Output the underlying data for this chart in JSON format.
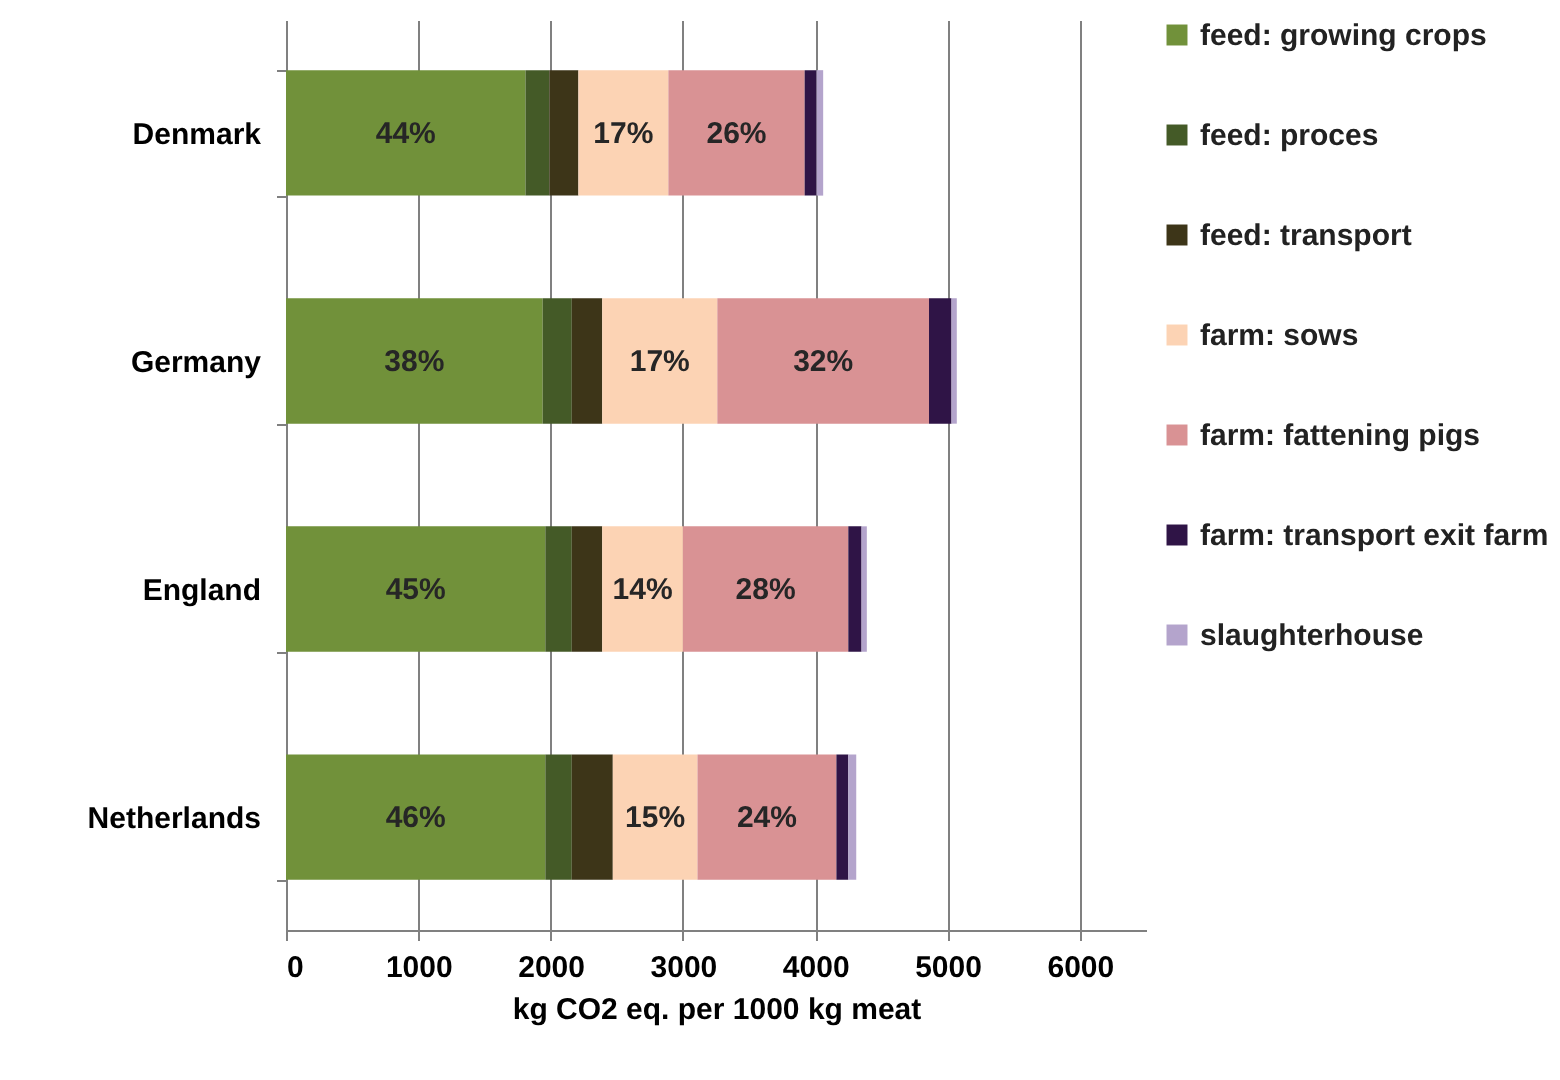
{
  "chart_data": {
    "type": "bar",
    "orientation": "horizontal",
    "stacked": true,
    "xlabel": "kg CO2 eq. per 1000 kg meat",
    "categories": [
      "Denmark",
      "Germany",
      "England",
      "Netherlands"
    ],
    "xlim": [
      0,
      6500
    ],
    "xticks": [
      0,
      1000,
      2000,
      3000,
      4000,
      5000,
      6000
    ],
    "grid": "x",
    "legend": "right",
    "series": [
      {
        "name": "feed: growing crops",
        "color": "#71913a",
        "values": [
          1810,
          1940,
          1960,
          1960
        ]
      },
      {
        "name": "feed: proces",
        "color": "#445a27",
        "values": [
          180,
          220,
          200,
          200
        ]
      },
      {
        "name": "feed: transport",
        "color": "#3d3518",
        "values": [
          220,
          230,
          230,
          310
        ]
      },
      {
        "name": "farm: sows",
        "color": "#fcd3b4",
        "values": [
          680,
          870,
          610,
          640
        ]
      },
      {
        "name": "farm: fattening pigs",
        "color": "#d99294",
        "values": [
          1030,
          1600,
          1250,
          1050
        ]
      },
      {
        "name": "farm: transport exit farm",
        "color": "#2f1446",
        "values": [
          90,
          170,
          100,
          90
        ]
      },
      {
        "name": "slaughterhouse",
        "color": "#b4a4cc",
        "values": [
          50,
          40,
          40,
          60
        ]
      }
    ],
    "annotations": [
      "44%",
      {
        "text": "17%",
        "x": 2890,
        "y": "Denmark"
      },
      {
        "text": "26%",
        "x": 3920,
        "y": "Denmark"
      },
      "38%",
      {
        "text": "17%",
        "x": 3260,
        "y": "Germany"
      },
      {
        "text": "32%",
        "x": 4860,
        "y": "Germany"
      },
      "45%",
      {
        "text": "14%",
        "x": 3000,
        "y": "England"
      },
      {
        "text": "28%",
        "x": 4250,
        "y": "England"
      },
      "46%",
      {
        "text": "15%",
        "x": 3110,
        "y": "Netherlands"
      },
      {
        "text": "24%",
        "x": 4160,
        "y": "Netherlands"
      }
    ]
  }
}
